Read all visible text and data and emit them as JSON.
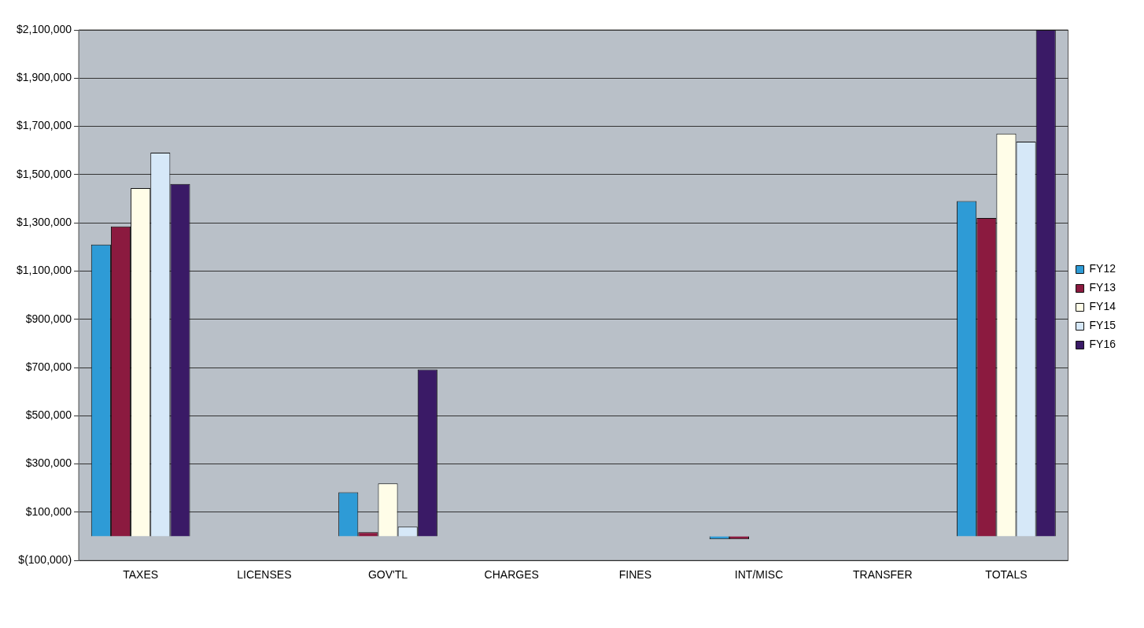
{
  "chart_data": {
    "type": "bar",
    "categories": [
      "TAXES",
      "LICENSES",
      "GOV'TL",
      "CHARGES",
      "FINES",
      "INT/MISC",
      "TRANSFER",
      "TOTALS"
    ],
    "series": [
      {
        "name": "FY12",
        "color": "#2e9bd6",
        "values": [
          1210000,
          0,
          183000,
          0,
          0,
          -12000,
          0,
          1390000
        ]
      },
      {
        "name": "FY13",
        "color": "#8b1a3f",
        "values": [
          1285000,
          0,
          17000,
          0,
          0,
          -12000,
          0,
          1320000
        ]
      },
      {
        "name": "FY14",
        "color": "#fffde8",
        "values": [
          1444000,
          0,
          220000,
          0,
          0,
          0,
          0,
          1670000
        ]
      },
      {
        "name": "FY15",
        "color": "#d6e8f8",
        "values": [
          1591000,
          0,
          40000,
          0,
          0,
          0,
          0,
          1637000
        ]
      },
      {
        "name": "FY16",
        "color": "#3a1a66",
        "values": [
          1461000,
          0,
          692000,
          0,
          0,
          0,
          0,
          2100000
        ]
      }
    ],
    "ylim": [
      -100000,
      2100000
    ],
    "yticks": [
      {
        "value": -100000,
        "label": "$(100,000)"
      },
      {
        "value": 100000,
        "label": "$100,000"
      },
      {
        "value": 300000,
        "label": "$300,000"
      },
      {
        "value": 500000,
        "label": "$500,000"
      },
      {
        "value": 700000,
        "label": "$700,000"
      },
      {
        "value": 900000,
        "label": "$900,000"
      },
      {
        "value": 1100000,
        "label": "$1,100,000"
      },
      {
        "value": 1300000,
        "label": "$1,300,000"
      },
      {
        "value": 1500000,
        "label": "$1,500,000"
      },
      {
        "value": 1700000,
        "label": "$1,700,000"
      },
      {
        "value": 1900000,
        "label": "$1,900,000"
      },
      {
        "value": 2100000,
        "label": "$2,100,000"
      }
    ],
    "grid": "y",
    "legend": "right"
  }
}
